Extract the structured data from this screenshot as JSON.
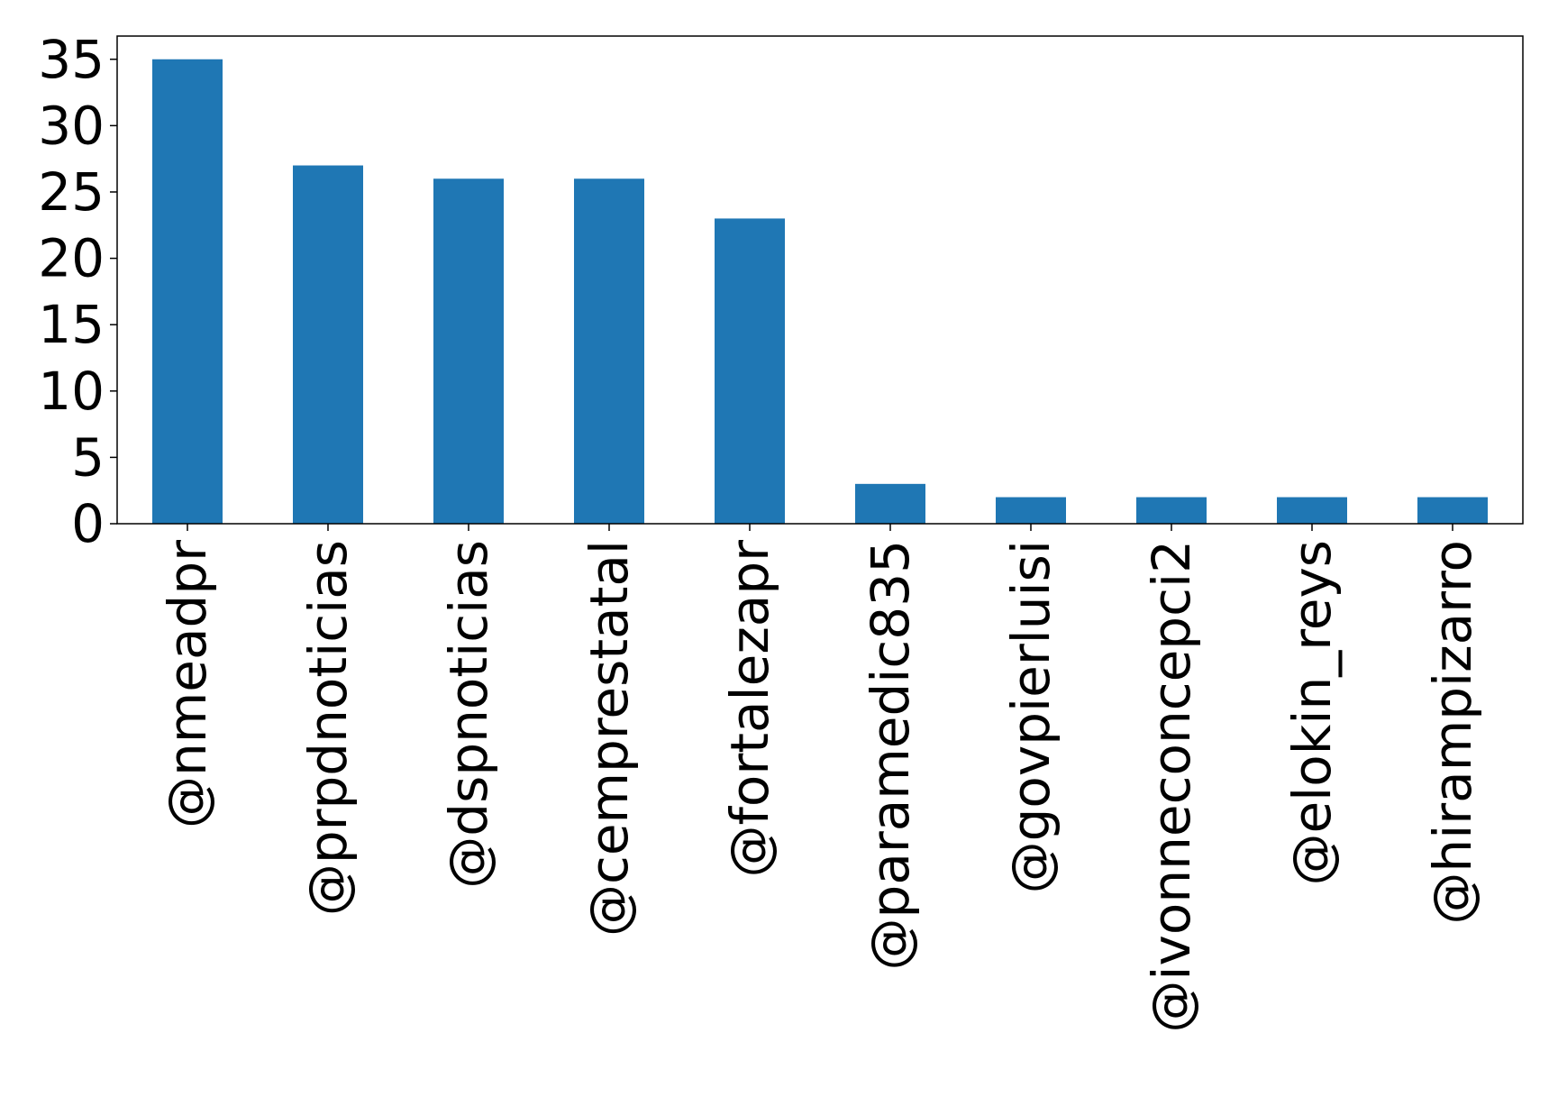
{
  "chart_data": {
    "type": "bar",
    "categories": [
      "@nmeadpr",
      "@prpdnoticias",
      "@dspnoticias",
      "@cemprestatal",
      "@fortalezapr",
      "@paramedic835",
      "@govpierluisi",
      "@ivonneconcepci2",
      "@elokin_reys",
      "@hirampizarro"
    ],
    "values": [
      35,
      27,
      26,
      26,
      23,
      3,
      2,
      2,
      2,
      2
    ],
    "title": "",
    "xlabel": "",
    "ylabel": "",
    "ylim": [
      0,
      36.75
    ],
    "yticks": [
      "0",
      "5",
      "10",
      "15",
      "20",
      "25",
      "30",
      "35"
    ],
    "grid": false,
    "bar_color": "#1f77b4"
  }
}
